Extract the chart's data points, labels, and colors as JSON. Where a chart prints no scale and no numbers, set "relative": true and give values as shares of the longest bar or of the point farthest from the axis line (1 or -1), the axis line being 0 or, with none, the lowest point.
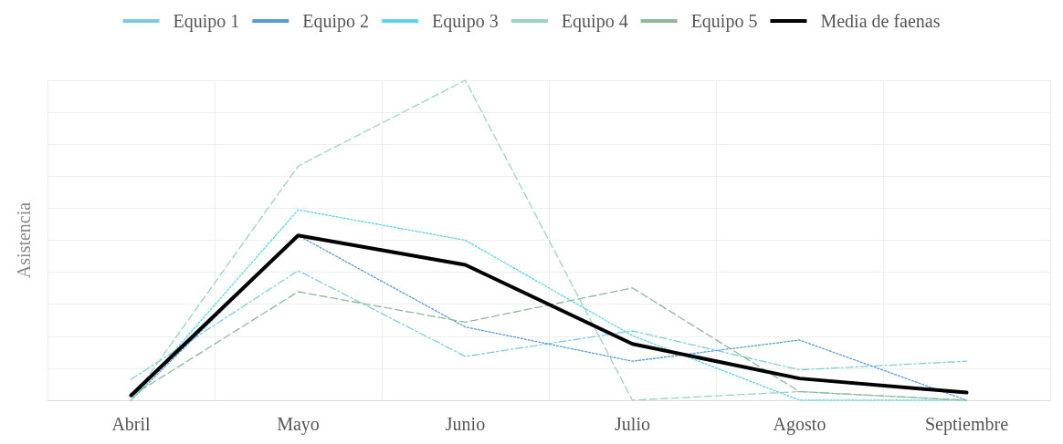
{
  "chart_data": {
    "type": "line",
    "relative": true,
    "ylabel": "Asistencia",
    "categories": [
      "Abril",
      "Mayo",
      "Junio",
      "Julio",
      "Agosto",
      "Septiembre"
    ],
    "grid": true,
    "legend": "top",
    "marker": "none",
    "series": [
      {
        "name": "Equipo 1",
        "color": "#7ecbe0",
        "line_style": "dashdot",
        "values": [
          0.065,
          0.405,
          0.137,
          0.217,
          0.095,
          0.122
        ]
      },
      {
        "name": "Equipo 2",
        "color": "#5b9bd5",
        "line_style": "dotted",
        "values": [
          0,
          0.515,
          0.229,
          0.122,
          0.188,
          0
        ]
      },
      {
        "name": "Equipo 3",
        "color": "#5ad4e6",
        "line_style": "dotted",
        "values": [
          0,
          0.595,
          0.5,
          0.202,
          0,
          0
        ]
      },
      {
        "name": "Equipo 4",
        "color": "#9bd3c0",
        "line_style": "dashed",
        "values": [
          0,
          0.732,
          1,
          0,
          0.027,
          0
        ]
      },
      {
        "name": "Equipo 5",
        "color": "#8fb89a",
        "line_style": "dashed",
        "values": [
          0.012,
          0.339,
          0.244,
          0.351,
          0.027,
          0
        ]
      },
      {
        "name": "Media de faenas",
        "color": "#000000",
        "line_style": "solid",
        "values": [
          0.015,
          0.515,
          0.423,
          0.176,
          0.068,
          0.024
        ]
      }
    ]
  }
}
